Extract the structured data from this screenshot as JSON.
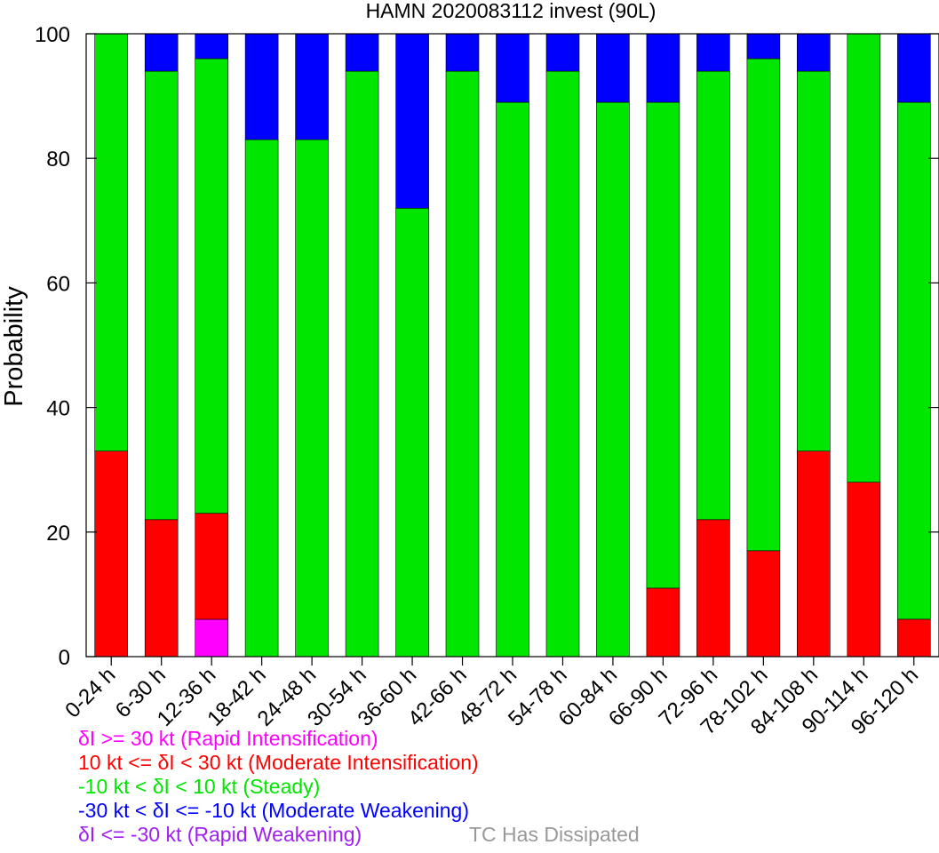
{
  "chart_data": {
    "type": "bar",
    "stacked": true,
    "title": "HAMN 2020083112 invest (90L)",
    "xlabel": "",
    "ylabel": "Probability",
    "ylim": [
      0,
      100
    ],
    "yticks": [
      "0",
      "20",
      "40",
      "60",
      "80",
      "100"
    ],
    "ytick_values": [
      0,
      20,
      40,
      60,
      80,
      100
    ],
    "grid": false,
    "categories": [
      "0-24 h",
      "6-30 h",
      "12-36 h",
      "18-42 h",
      "24-48 h",
      "30-54 h",
      "36-60 h",
      "42-66 h",
      "48-72 h",
      "54-78 h",
      "60-84 h",
      "66-90 h",
      "72-96 h",
      "78-102 h",
      "84-108 h",
      "90-114 h",
      "96-120 h"
    ],
    "series": [
      {
        "name": "δI >= 30 kt (Rapid Intensification)",
        "color": "#ff00ff",
        "values": [
          0,
          0,
          6,
          0,
          0,
          0,
          0,
          0,
          0,
          0,
          0,
          0,
          0,
          0,
          0,
          0,
          0
        ]
      },
      {
        "name": "10 kt <= δI < 30 kt (Moderate Intensification)",
        "color": "#ff0000",
        "values": [
          33,
          22,
          17,
          0,
          0,
          0,
          0,
          0,
          0,
          0,
          0,
          11,
          22,
          17,
          33,
          28,
          6
        ]
      },
      {
        "name": "-10 kt < δI < 10 kt (Steady)",
        "color": "#00e600",
        "values": [
          67,
          72,
          73,
          83,
          83,
          94,
          72,
          94,
          89,
          94,
          89,
          78,
          72,
          79,
          61,
          72,
          83
        ]
      },
      {
        "name": "-30 kt < δI <= -10 kt (Moderate Weakening)",
        "color": "#0000ff",
        "values": [
          0,
          6,
          4,
          17,
          17,
          6,
          28,
          6,
          11,
          6,
          11,
          11,
          6,
          4,
          6,
          0,
          11
        ]
      },
      {
        "name": "δI <= -30 kt (Rapid Weakening)",
        "color": "#a020f0",
        "values": [
          0,
          0,
          0,
          0,
          0,
          0,
          0,
          0,
          0,
          0,
          0,
          0,
          0,
          0,
          0,
          0,
          0
        ]
      }
    ],
    "dissipated_label": "TC Has Dissipated",
    "dissipated_color": "#999999"
  }
}
